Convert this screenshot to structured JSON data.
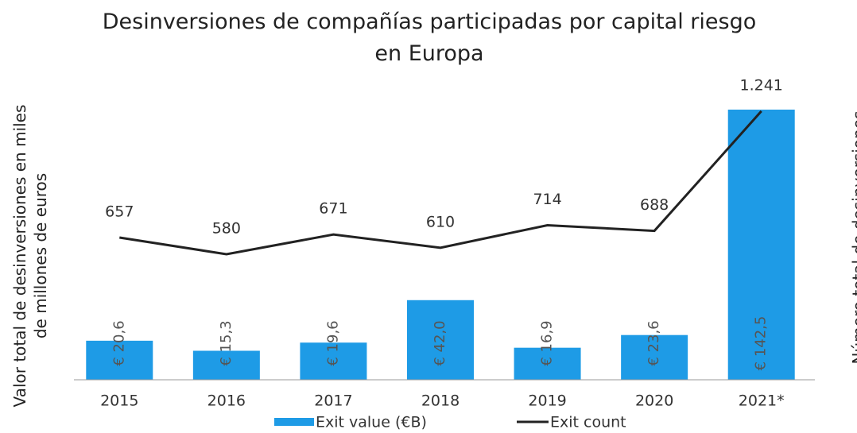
{
  "chart_data": {
    "type": "bar+line",
    "title": "Desinversiones de compañías participadas por capital riesgo en Europa",
    "ylabel": "Valor total de desinversiones en miles de millones de euros",
    "y2label": "Número total de desinversiones",
    "categories": [
      "2015",
      "2016",
      "2017",
      "2018",
      "2019",
      "2020",
      "2021*"
    ],
    "series": [
      {
        "name": "Exit value (€B)",
        "type": "bar",
        "color": "#1e9be6",
        "axis": "y",
        "values": [
          20.6,
          15.3,
          19.6,
          42.0,
          16.9,
          23.6,
          142.5
        ],
        "value_labels": [
          "€ 20,6",
          "€ 15,3",
          "€ 19,6",
          "€ 42,0",
          "€ 16,9",
          "€ 23,6",
          "€ 142,5"
        ]
      },
      {
        "name": "Exit count",
        "type": "line",
        "color": "#222222",
        "axis": "y2",
        "values": [
          657,
          580,
          671,
          610,
          714,
          688,
          1241
        ],
        "value_labels": [
          "657",
          "580",
          "671",
          "610",
          "714",
          "688",
          "1.241"
        ]
      }
    ],
    "ylim": [
      0,
      145
    ],
    "y2lim": [
      0,
      1270
    ],
    "legend": "bottom"
  }
}
